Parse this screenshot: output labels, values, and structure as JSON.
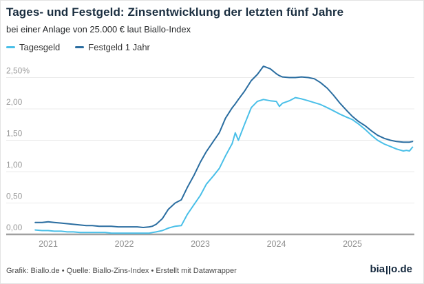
{
  "header": {
    "title": "Tages- und Festgeld: Zinsentwicklung der letzten fünf Jahre",
    "subtitle": "bei einer Anlage von 25.000 € laut Biallo-Index"
  },
  "legend": {
    "items": [
      {
        "label": "Tagesgeld",
        "color": "#49bfe8"
      },
      {
        "label": "Festgeld 1 Jahr",
        "color": "#2a6da0"
      }
    ]
  },
  "chart_data": {
    "type": "line",
    "title": "Tages- und Festgeld: Zinsentwicklung der letzten fünf Jahre",
    "subtitle": "bei einer Anlage von 25.000 € laut Biallo-Index",
    "unit": "%",
    "grid": "horizontal",
    "legend_position": "top",
    "xlim": [
      2020.78,
      2025.9
    ],
    "ylim": [
      0,
      2.72
    ],
    "yticks": [
      0,
      0.5,
      1.0,
      1.5,
      2.0,
      2.5
    ],
    "ytick_labels": [
      "0,00",
      "0,50",
      "1,00",
      "1,50",
      "2,00",
      "2,50%"
    ],
    "xticks": [
      2021,
      2022,
      2023,
      2024,
      2025
    ],
    "xtick_labels": [
      "2021",
      "2022",
      "2023",
      "2024",
      "2025"
    ],
    "x": [
      2020.83,
      2020.92,
      2021.0,
      2021.08,
      2021.17,
      2021.25,
      2021.33,
      2021.42,
      2021.5,
      2021.58,
      2021.67,
      2021.75,
      2021.83,
      2021.92,
      2022.0,
      2022.08,
      2022.17,
      2022.25,
      2022.33,
      2022.37,
      2022.42,
      2022.5,
      2022.58,
      2022.67,
      2022.75,
      2022.83,
      2022.92,
      2023.0,
      2023.08,
      2023.17,
      2023.25,
      2023.33,
      2023.42,
      2023.46,
      2023.5,
      2023.58,
      2023.67,
      2023.75,
      2023.83,
      2023.92,
      2024.0,
      2024.04,
      2024.08,
      2024.17,
      2024.25,
      2024.33,
      2024.42,
      2024.5,
      2024.58,
      2024.67,
      2024.75,
      2024.83,
      2024.92,
      2025.0,
      2025.08,
      2025.17,
      2025.25,
      2025.33,
      2025.42,
      2025.5,
      2025.58,
      2025.67,
      2025.71,
      2025.75,
      2025.79
    ],
    "series": [
      {
        "name": "Tagesgeld",
        "color": "#49bfe8",
        "values": [
          0.07,
          0.06,
          0.06,
          0.05,
          0.05,
          0.04,
          0.04,
          0.03,
          0.03,
          0.03,
          0.03,
          0.03,
          0.02,
          0.02,
          0.02,
          0.02,
          0.02,
          0.02,
          0.02,
          0.03,
          0.04,
          0.06,
          0.1,
          0.13,
          0.14,
          0.32,
          0.48,
          0.62,
          0.8,
          0.93,
          1.05,
          1.25,
          1.45,
          1.62,
          1.5,
          1.75,
          2.02,
          2.12,
          2.15,
          2.13,
          2.12,
          2.04,
          2.09,
          2.13,
          2.18,
          2.16,
          2.13,
          2.1,
          2.07,
          2.02,
          1.97,
          1.92,
          1.87,
          1.83,
          1.76,
          1.67,
          1.58,
          1.5,
          1.44,
          1.4,
          1.36,
          1.33,
          1.34,
          1.33,
          1.39
        ]
      },
      {
        "name": "Festgeld 1 Jahr",
        "color": "#2a6da0",
        "values": [
          0.19,
          0.19,
          0.2,
          0.19,
          0.18,
          0.17,
          0.16,
          0.15,
          0.14,
          0.14,
          0.13,
          0.13,
          0.13,
          0.12,
          0.12,
          0.12,
          0.12,
          0.11,
          0.12,
          0.13,
          0.16,
          0.25,
          0.4,
          0.5,
          0.55,
          0.75,
          0.95,
          1.15,
          1.32,
          1.48,
          1.62,
          1.85,
          2.02,
          2.08,
          2.15,
          2.28,
          2.45,
          2.55,
          2.68,
          2.64,
          2.56,
          2.53,
          2.51,
          2.5,
          2.5,
          2.51,
          2.5,
          2.48,
          2.42,
          2.33,
          2.22,
          2.1,
          1.98,
          1.88,
          1.8,
          1.73,
          1.65,
          1.58,
          1.53,
          1.5,
          1.48,
          1.47,
          1.47,
          1.47,
          1.48
        ]
      }
    ]
  },
  "footer": {
    "credit": "Grafik: Biallo.de • Quelle: Biallo-Zins-Index • Erstellt mit Datawrapper",
    "logo": "biallo.de",
    "logo_parts": {
      "left": "bia",
      "right": "o.de"
    }
  },
  "colors": {
    "background": "#ffffff",
    "title": "#1a2e40",
    "gridline": "#ebebeb",
    "baseline": "#a0a0a0",
    "axis_label": "#999999"
  }
}
